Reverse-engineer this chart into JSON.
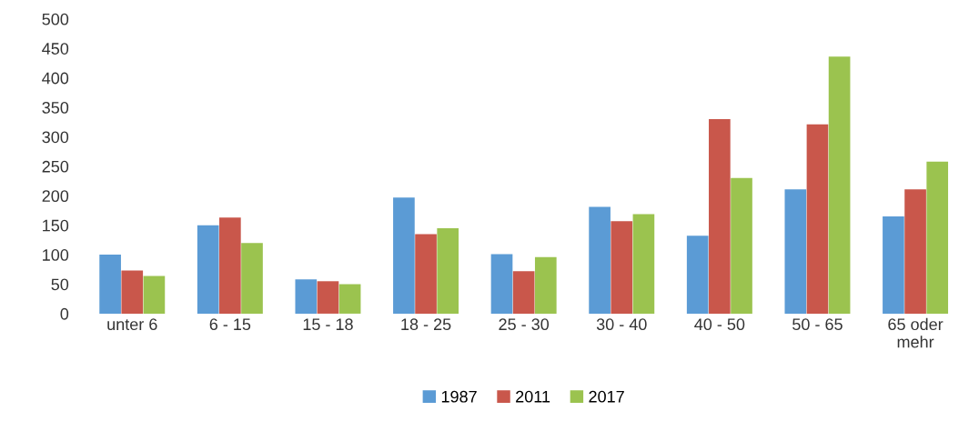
{
  "chart_data": {
    "type": "bar",
    "categories": [
      "unter 6",
      "6 - 15",
      "15 - 18",
      "18 - 25",
      "25 - 30",
      "30 - 40",
      "40 - 50",
      "50 - 65",
      "65 oder\nmehr"
    ],
    "series": [
      {
        "name": "1987",
        "color": "#5b9bd5",
        "values": [
          100,
          150,
          58,
          197,
          101,
          181,
          132,
          211,
          165
        ]
      },
      {
        "name": "2011",
        "color": "#c9574b",
        "values": [
          73,
          163,
          55,
          135,
          72,
          157,
          330,
          321,
          211
        ]
      },
      {
        "name": "2017",
        "color": "#9bc34f",
        "values": [
          64,
          120,
          50,
          145,
          96,
          169,
          230,
          436,
          258
        ]
      }
    ],
    "ylim": [
      0,
      500
    ],
    "yticks": [
      0,
      50,
      100,
      150,
      200,
      250,
      300,
      350,
      400,
      450,
      500
    ],
    "grid": false,
    "legend": "bottom"
  }
}
